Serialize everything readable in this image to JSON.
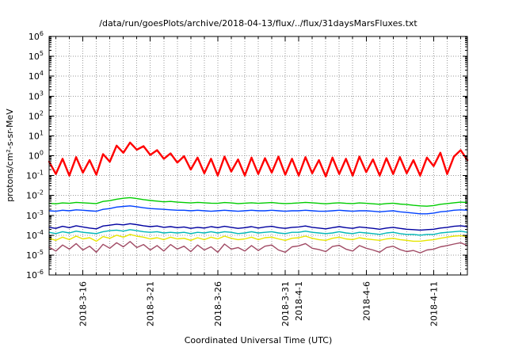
{
  "chart": {
    "title": "/data/run/goesPlots/archive/2018-04-13/flux/../flux/31daysMarsFluxes.txt",
    "xlabel": "Coordinated Universal Time (UTC)",
    "ylabel": "protons/cm²-s-sr-MeV"
  },
  "chart_data": {
    "type": "line",
    "title": "/data/run/goesPlots/archive/2018-04-13/flux/../flux/31daysMarsFluxes.txt",
    "xlabel": "Coordinated Universal Time (UTC)",
    "ylabel": "protons/cm²-s-sr-MeV",
    "style": {
      "background": "#ffffff",
      "grid_color": "#999999",
      "axis_color": "#000000",
      "grid": "on",
      "legend": "none",
      "y_scale": "log"
    },
    "x_axis": {
      "domain": [
        0,
        31
      ],
      "grid_start": 0.5,
      "grid_step": 1,
      "tick_labels": [
        {
          "label": "2018-3-16",
          "day": 2.5
        },
        {
          "label": "2018-3-21",
          "day": 7.5
        },
        {
          "label": "2018-3-26",
          "day": 12.5
        },
        {
          "label": "2018-3-31",
          "day": 17.5
        },
        {
          "label": "2018-4-1",
          "day": 18.5
        },
        {
          "label": "2018-4-6",
          "day": 23.5
        },
        {
          "label": "2018-4-11",
          "day": 28.5
        }
      ]
    },
    "y_axis": {
      "log_exponent_range": [
        -6,
        6
      ],
      "tick_exponents": [
        6,
        5,
        4,
        3,
        2,
        1,
        0,
        -1,
        -2,
        -3,
        -4,
        -5,
        -6
      ]
    },
    "x_start": 0,
    "x_step": 0.5,
    "series": [
      {
        "name": "red",
        "color": "#ff0000",
        "width": 2.4,
        "scale": 1,
        "values": [
          0.5,
          0.12,
          0.7,
          0.1,
          0.85,
          0.14,
          0.6,
          0.11,
          1.2,
          0.5,
          3.2,
          1.4,
          4.6,
          2.0,
          3.0,
          1.1,
          1.9,
          0.7,
          1.3,
          0.45,
          0.95,
          0.2,
          0.8,
          0.13,
          0.7,
          0.1,
          0.9,
          0.16,
          0.65,
          0.1,
          0.8,
          0.12,
          0.75,
          0.14,
          0.9,
          0.11,
          0.7,
          0.1,
          0.85,
          0.13,
          0.6,
          0.09,
          0.8,
          0.12,
          0.7,
          0.1,
          0.9,
          0.15,
          0.65,
          0.1,
          0.75,
          0.12,
          0.85,
          0.13,
          0.6,
          0.1,
          0.8,
          0.3,
          1.4,
          0.12,
          0.9,
          1.9,
          0.6
        ]
      },
      {
        "name": "green",
        "color": "#00cc00",
        "width": 1.4,
        "scale": 0.001,
        "values": [
          4.0,
          3.8,
          4.2,
          4.0,
          4.5,
          4.3,
          4.1,
          3.9,
          5.0,
          5.5,
          6.5,
          7.2,
          7.8,
          7.0,
          6.2,
          5.6,
          5.2,
          4.8,
          5.0,
          4.6,
          4.4,
          4.2,
          4.5,
          4.3,
          4.1,
          4.0,
          4.4,
          4.2,
          3.9,
          4.1,
          4.3,
          4.0,
          4.2,
          4.4,
          4.1,
          3.9,
          4.0,
          4.2,
          4.5,
          4.3,
          4.0,
          3.8,
          4.1,
          4.3,
          4.0,
          3.9,
          4.2,
          4.0,
          3.8,
          3.6,
          3.9,
          4.1,
          3.7,
          3.5,
          3.2,
          3.0,
          2.9,
          3.1,
          3.6,
          3.9,
          4.3,
          4.6,
          4.4
        ]
      },
      {
        "name": "blue",
        "color": "#0040ff",
        "width": 1.4,
        "scale": 0.001,
        "values": [
          1.7,
          1.6,
          1.8,
          1.7,
          1.9,
          1.8,
          1.7,
          1.6,
          2.0,
          2.2,
          2.6,
          2.8,
          3.0,
          2.7,
          2.4,
          2.2,
          2.1,
          2.0,
          1.9,
          1.8,
          1.8,
          1.7,
          1.8,
          1.7,
          1.6,
          1.7,
          1.8,
          1.7,
          1.6,
          1.7,
          1.8,
          1.7,
          1.7,
          1.8,
          1.7,
          1.6,
          1.7,
          1.7,
          1.8,
          1.7,
          1.6,
          1.6,
          1.7,
          1.8,
          1.7,
          1.6,
          1.7,
          1.7,
          1.6,
          1.5,
          1.6,
          1.7,
          1.5,
          1.4,
          1.3,
          1.2,
          1.2,
          1.3,
          1.5,
          1.6,
          1.8,
          1.9,
          1.8
        ]
      },
      {
        "name": "navy",
        "color": "#0000a0",
        "width": 1.4,
        "scale": 0.0001,
        "values": [
          2.5,
          2.2,
          2.8,
          2.4,
          3.0,
          2.6,
          2.3,
          2.1,
          2.9,
          3.2,
          3.6,
          3.3,
          3.8,
          3.4,
          3.0,
          2.7,
          2.9,
          2.5,
          2.7,
          2.4,
          2.6,
          2.2,
          2.5,
          2.3,
          2.7,
          2.4,
          2.8,
          2.5,
          2.2,
          2.4,
          2.7,
          2.3,
          2.6,
          2.8,
          2.4,
          2.2,
          2.5,
          2.6,
          2.9,
          2.5,
          2.3,
          2.1,
          2.4,
          2.7,
          2.4,
          2.2,
          2.6,
          2.4,
          2.2,
          2.0,
          2.3,
          2.5,
          2.2,
          2.0,
          1.9,
          1.8,
          1.9,
          2.0,
          2.3,
          2.5,
          2.8,
          3.0,
          2.7
        ]
      },
      {
        "name": "cyan",
        "color": "#00b8b8",
        "width": 1.4,
        "scale": 0.0001,
        "values": [
          1.4,
          1.2,
          1.5,
          1.3,
          1.6,
          1.4,
          1.3,
          1.2,
          1.5,
          1.7,
          1.8,
          1.6,
          1.9,
          1.7,
          1.5,
          1.4,
          1.5,
          1.3,
          1.4,
          1.3,
          1.4,
          1.2,
          1.4,
          1.3,
          1.5,
          1.3,
          1.5,
          1.4,
          1.2,
          1.3,
          1.5,
          1.3,
          1.4,
          1.5,
          1.3,
          1.2,
          1.4,
          1.4,
          1.6,
          1.4,
          1.3,
          1.2,
          1.3,
          1.5,
          1.3,
          1.2,
          1.4,
          1.3,
          1.2,
          1.1,
          1.3,
          1.4,
          1.2,
          1.1,
          1.1,
          1.0,
          1.1,
          1.1,
          1.3,
          1.4,
          1.5,
          1.6,
          1.4
        ]
      },
      {
        "name": "yellow",
        "color": "#e6e600",
        "width": 1.4,
        "scale": 1e-05,
        "values": [
          7.0,
          5.5,
          8.0,
          6.0,
          9.0,
          6.5,
          7.5,
          5.0,
          8.5,
          7.0,
          10.0,
          8.0,
          11.0,
          9.0,
          8.0,
          6.5,
          7.5,
          6.0,
          8.0,
          6.5,
          7.0,
          5.5,
          7.5,
          6.0,
          8.0,
          6.5,
          9.0,
          7.0,
          6.0,
          6.5,
          8.0,
          6.0,
          7.5,
          8.0,
          6.5,
          5.5,
          7.0,
          7.5,
          9.0,
          7.0,
          6.0,
          5.5,
          7.0,
          8.0,
          6.5,
          6.0,
          7.5,
          6.5,
          6.0,
          5.5,
          6.5,
          7.0,
          6.0,
          5.5,
          5.0,
          5.0,
          5.5,
          6.0,
          7.0,
          8.0,
          9.0,
          9.5,
          8.5
        ]
      },
      {
        "name": "purple",
        "color": "#a04a64",
        "width": 1.4,
        "scale": 1e-05,
        "values": [
          2.5,
          1.6,
          3.2,
          2.0,
          3.8,
          1.8,
          2.8,
          1.4,
          3.5,
          2.2,
          4.2,
          2.6,
          4.8,
          2.4,
          3.4,
          1.8,
          3.0,
          1.6,
          3.4,
          2.0,
          2.8,
          1.5,
          3.2,
          1.8,
          2.6,
          1.4,
          3.6,
          2.0,
          2.4,
          1.6,
          3.0,
          1.7,
          2.8,
          3.2,
          1.8,
          1.4,
          2.6,
          2.9,
          3.8,
          2.2,
          1.9,
          1.5,
          2.7,
          3.1,
          2.0,
          1.6,
          3.0,
          2.2,
          1.8,
          1.4,
          2.4,
          2.8,
          1.9,
          1.5,
          1.7,
          1.3,
          1.8,
          2.0,
          2.6,
          3.0,
          3.6,
          4.2,
          3.0
        ]
      }
    ]
  }
}
